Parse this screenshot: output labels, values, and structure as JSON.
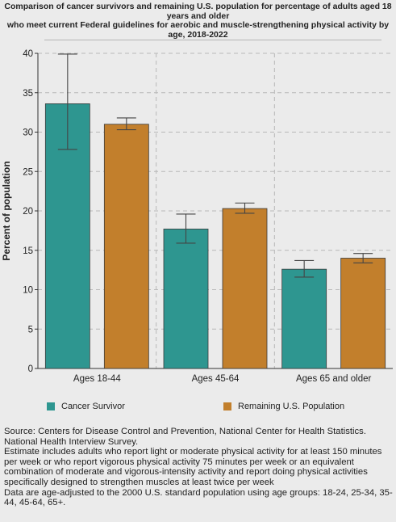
{
  "title_lines": [
    "Comparison of cancer survivors and remaining U.S. population for percentage of adults aged 18",
    "years and older",
    "who meet current Federal guidelines for aerobic and muscle-strengthening physical activity by",
    "age,  2018-2022"
  ],
  "chart_data": {
    "type": "bar",
    "ylabel": "Percent of population",
    "xlabel": "",
    "ylim": [
      0,
      40
    ],
    "yticks": [
      0,
      5,
      10,
      15,
      20,
      25,
      30,
      35,
      40
    ],
    "grid": true,
    "legend_position": "bottom",
    "categories": [
      "Ages 18-44",
      "Ages 45-64",
      "Ages 65 and older"
    ],
    "series": [
      {
        "name": "Cancer Survivor",
        "color": "#2e9690",
        "values": [
          33.6,
          17.7,
          12.6
        ],
        "error_low": [
          27.8,
          15.9,
          11.6
        ],
        "error_high": [
          39.9,
          19.6,
          13.7
        ]
      },
      {
        "name": "Remaining U.S. Population",
        "color": "#c27f2c",
        "values": [
          31.0,
          20.3,
          14.0
        ],
        "error_low": [
          30.3,
          19.7,
          13.4
        ],
        "error_high": [
          31.8,
          21.0,
          14.6
        ]
      }
    ]
  },
  "footnote": [
    "Source: Centers for Disease Control and Prevention, National Center for Health Statistics. National Health Interview Survey.",
    "Estimate includes adults who report light or moderate physical activity for at least 150 minutes per week or who report vigorous physical activity 75 minutes per week or an equivalent combination of moderate and vigorous-intensity activity and report doing physical activities specifically designed to strengthen muscles at least twice per week",
    "Data are age-adjusted to the 2000 U.S. standard population using age groups: 18-24, 25-34, 35-44, 45-64, 65+."
  ]
}
